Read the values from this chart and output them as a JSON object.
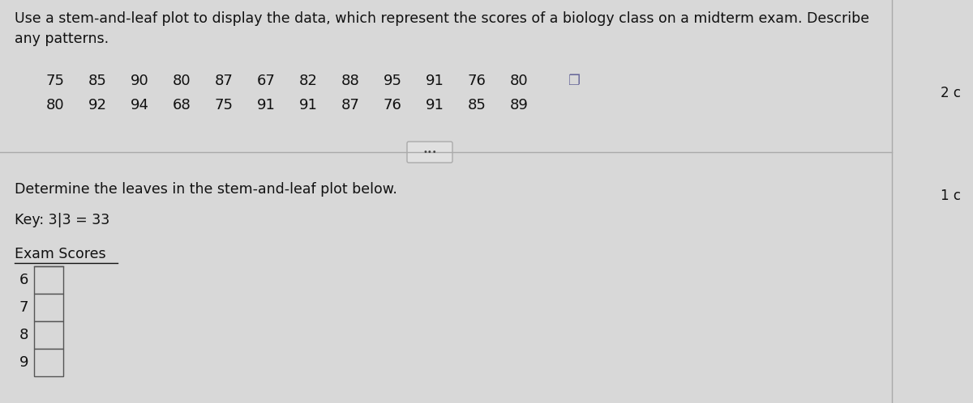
{
  "title_text": "Use a stem-and-leaf plot to display the data, which represent the scores of a biology class on a midterm exam. Describe\nany patterns.",
  "data_row1": [
    75,
    85,
    90,
    80,
    87,
    67,
    82,
    88,
    95,
    91,
    76,
    80
  ],
  "data_row2": [
    80,
    92,
    94,
    68,
    75,
    91,
    91,
    87,
    76,
    91,
    85,
    89
  ],
  "instruction_text": "Determine the leaves in the stem-and-leaf plot below.",
  "key_text": "Key: 3|3 = 33",
  "plot_title": "Exam Scores",
  "stems": [
    6,
    7,
    8,
    9
  ],
  "bg_color": "#d8d8d8",
  "right_label_top": "2 c",
  "right_label_bottom": "1 c",
  "box_color": "#d8d8d8",
  "box_border_color": "#555555",
  "text_color": "#111111",
  "separator_color": "#999999"
}
